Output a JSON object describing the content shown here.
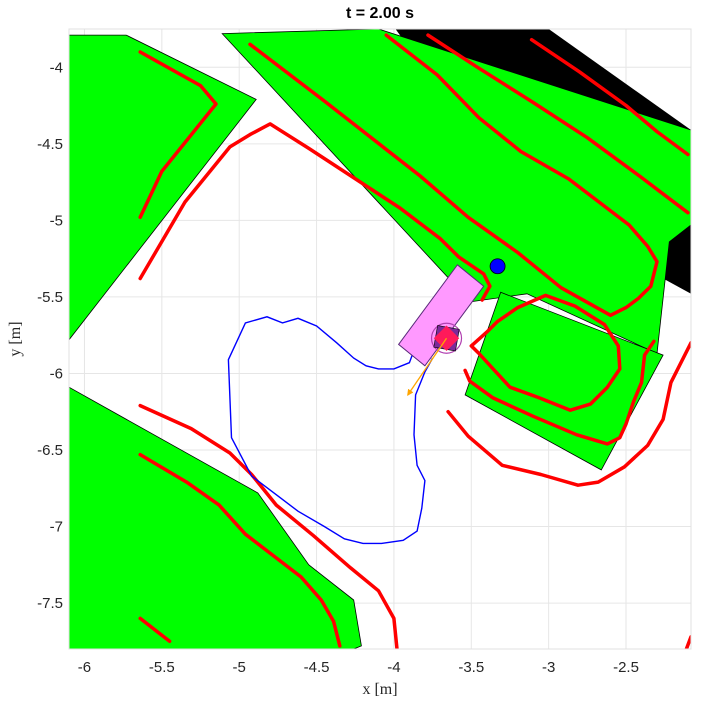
{
  "chart_data": {
    "type": "scatter",
    "title": "t = 2.00 s",
    "xlabel": "x [m]",
    "ylabel": "y [m]",
    "xlim": [
      -6.1,
      -2.08
    ],
    "ylim": [
      -7.8,
      -3.75
    ],
    "x_ticks": [
      -6,
      -5.5,
      -5,
      -4.5,
      -4,
      -3.5,
      -3,
      -2.5
    ],
    "x_tick_labels": [
      "-6",
      "-5.5",
      "-5",
      "-4.5",
      "-4",
      "-3.5",
      "-3",
      "-2.5"
    ],
    "y_ticks": [
      -4,
      -4.5,
      -5,
      -5.5,
      -6,
      -6.5,
      -7,
      -7.5
    ],
    "y_tick_labels": [
      "-4",
      "-4.5",
      "-5",
      "-5.5",
      "-6",
      "-6.5",
      "-7",
      "-7.5"
    ],
    "grid": true,
    "colors": {
      "obstacle": "#00ff00",
      "occupied": "#000000",
      "boundary": "#ff0000",
      "path": "#0000ff",
      "vehicle": "#ff99ff",
      "marker": "#0000ff",
      "velocity": "#ffa500"
    },
    "black_regions": [
      [
        [
          -3.99,
          -3.75
        ],
        [
          -3.0,
          -3.75
        ],
        [
          -2.08,
          -4.41
        ],
        [
          -2.08,
          -5.48
        ],
        [
          -3.2,
          -4.86
        ]
      ],
      [
        [
          -6.1,
          -7.0
        ],
        [
          -4.55,
          -7.25
        ],
        [
          -4.4,
          -7.8
        ],
        [
          -6.1,
          -7.8
        ]
      ]
    ],
    "green_regions": [
      [
        [
          -6.1,
          -3.79
        ],
        [
          -5.73,
          -3.79
        ],
        [
          -4.89,
          -4.21
        ],
        [
          -6.1,
          -5.78
        ]
      ],
      [
        [
          -5.11,
          -3.78
        ],
        [
          -4.1,
          -3.75
        ],
        [
          -2.08,
          -4.41
        ],
        [
          -2.08,
          -5.03
        ],
        [
          -2.22,
          -5.14
        ],
        [
          -2.3,
          -5.87
        ],
        [
          -3.14,
          -5.48
        ],
        [
          -3.49,
          -5.53
        ],
        [
          -3.59,
          -5.44
        ]
      ],
      [
        [
          -3.31,
          -5.47
        ],
        [
          -2.26,
          -5.88
        ],
        [
          -2.66,
          -6.63
        ],
        [
          -3.54,
          -6.14
        ]
      ],
      [
        [
          -6.1,
          -6.09
        ],
        [
          -4.88,
          -6.78
        ],
        [
          -4.55,
          -7.25
        ],
        [
          -4.26,
          -7.48
        ],
        [
          -4.21,
          -7.78
        ],
        [
          -4.26,
          -7.8
        ],
        [
          -6.1,
          -7.8
        ]
      ]
    ],
    "red_boundaries": [
      [
        [
          -5.64,
          -3.9
        ],
        [
          -5.25,
          -4.12
        ],
        [
          -5.15,
          -4.24
        ],
        [
          -5.5,
          -4.68
        ],
        [
          -5.64,
          -4.98
        ]
      ],
      [
        [
          -5.64,
          -5.38
        ],
        [
          -5.35,
          -4.88
        ],
        [
          -5.06,
          -4.52
        ],
        [
          -4.93,
          -4.44
        ],
        [
          -4.8,
          -4.37
        ],
        [
          -4.55,
          -4.53
        ],
        [
          -3.96,
          -4.92
        ],
        [
          -3.7,
          -5.12
        ],
        [
          -3.58,
          -5.24
        ],
        [
          -3.42,
          -5.35
        ],
        [
          -3.38,
          -5.43
        ],
        [
          -3.43,
          -5.52
        ]
      ],
      [
        [
          -4.93,
          -3.85
        ],
        [
          -4.45,
          -4.22
        ],
        [
          -3.83,
          -4.71
        ],
        [
          -3.52,
          -4.98
        ],
        [
          -3.2,
          -5.21
        ],
        [
          -2.92,
          -5.44
        ],
        [
          -2.6,
          -5.62
        ],
        [
          -2.5,
          -5.57
        ],
        [
          -2.42,
          -5.51
        ],
        [
          -2.34,
          -5.43
        ],
        [
          -2.3,
          -5.27
        ],
        [
          -2.36,
          -5.17
        ],
        [
          -2.48,
          -5.03
        ],
        [
          -2.87,
          -4.73
        ],
        [
          -3.18,
          -4.55
        ],
        [
          -3.45,
          -4.33
        ],
        [
          -3.72,
          -4.05
        ],
        [
          -4.05,
          -3.79
        ]
      ],
      [
        [
          -3.78,
          -3.79
        ],
        [
          -3.46,
          -4.0
        ],
        [
          -3.1,
          -4.23
        ],
        [
          -2.75,
          -4.46
        ],
        [
          -2.4,
          -4.72
        ],
        [
          -2.27,
          -4.82
        ],
        [
          -2.1,
          -4.95
        ]
      ],
      [
        [
          -3.11,
          -3.82
        ],
        [
          -2.8,
          -4.03
        ],
        [
          -2.5,
          -4.25
        ],
        [
          -2.3,
          -4.42
        ],
        [
          -2.1,
          -4.57
        ]
      ],
      [
        [
          -3.54,
          -5.98
        ],
        [
          -3.51,
          -6.05
        ],
        [
          -3.36,
          -6.16
        ],
        [
          -3.1,
          -6.28
        ],
        [
          -2.82,
          -6.4
        ],
        [
          -2.62,
          -6.46
        ],
        [
          -2.54,
          -6.42
        ],
        [
          -2.5,
          -6.33
        ],
        [
          -2.45,
          -6.18
        ],
        [
          -2.4,
          -6.06
        ],
        [
          -2.38,
          -5.88
        ],
        [
          -2.32,
          -5.79
        ]
      ],
      [
        [
          -2.08,
          -5.8
        ],
        [
          -2.21,
          -6.06
        ],
        [
          -2.26,
          -6.3
        ],
        [
          -2.36,
          -6.47
        ],
        [
          -2.51,
          -6.61
        ],
        [
          -2.68,
          -6.71
        ],
        [
          -2.81,
          -6.73
        ],
        [
          -3.05,
          -6.66
        ],
        [
          -3.3,
          -6.6
        ],
        [
          -3.52,
          -6.41
        ],
        [
          -3.65,
          -6.25
        ]
      ],
      [
        [
          -5.64,
          -6.21
        ],
        [
          -5.31,
          -6.36
        ],
        [
          -5.06,
          -6.52
        ],
        [
          -4.92,
          -6.66
        ],
        [
          -4.76,
          -6.86
        ],
        [
          -4.52,
          -7.06
        ],
        [
          -4.28,
          -7.27
        ],
        [
          -4.1,
          -7.42
        ],
        [
          -4.0,
          -7.6
        ],
        [
          -3.98,
          -7.8
        ]
      ],
      [
        [
          -5.64,
          -6.53
        ],
        [
          -5.34,
          -6.71
        ],
        [
          -5.13,
          -6.86
        ],
        [
          -4.96,
          -7.05
        ],
        [
          -4.6,
          -7.33
        ],
        [
          -4.47,
          -7.48
        ],
        [
          -4.39,
          -7.62
        ],
        [
          -4.35,
          -7.78
        ]
      ],
      [
        [
          -5.64,
          -7.6
        ],
        [
          -5.45,
          -7.75
        ]
      ],
      [
        [
          -2.08,
          -7.72
        ],
        [
          -2.11,
          -7.8
        ]
      ],
      [
        [
          -3.5,
          -5.82
        ],
        [
          -3.4,
          -5.73
        ],
        [
          -3.33,
          -5.66
        ],
        [
          -3.2,
          -5.57
        ],
        [
          -3.02,
          -5.49
        ],
        [
          -2.83,
          -5.56
        ],
        [
          -2.64,
          -5.68
        ],
        [
          -2.55,
          -5.82
        ],
        [
          -2.54,
          -5.97
        ],
        [
          -2.62,
          -6.09
        ],
        [
          -2.73,
          -6.2
        ],
        [
          -2.86,
          -6.24
        ],
        [
          -3.06,
          -6.16
        ],
        [
          -3.25,
          -6.09
        ],
        [
          -3.35,
          -5.98
        ],
        [
          -3.45,
          -5.87
        ],
        [
          -3.5,
          -5.82
        ]
      ]
    ],
    "path": [
      [
        -3.83,
        -5.74
      ],
      [
        -3.9,
        -5.93
      ],
      [
        -4.0,
        -5.97
      ],
      [
        -4.1,
        -5.97
      ],
      [
        -4.18,
        -5.95
      ],
      [
        -4.26,
        -5.9
      ],
      [
        -4.37,
        -5.8
      ],
      [
        -4.5,
        -5.69
      ],
      [
        -4.62,
        -5.64
      ],
      [
        -4.72,
        -5.67
      ],
      [
        -4.82,
        -5.63
      ],
      [
        -4.96,
        -5.67
      ],
      [
        -5.07,
        -5.91
      ],
      [
        -5.05,
        -6.42
      ],
      [
        -4.92,
        -6.67
      ],
      [
        -4.75,
        -6.8
      ],
      [
        -4.62,
        -6.9
      ],
      [
        -4.45,
        -7.0
      ],
      [
        -4.32,
        -7.08
      ],
      [
        -4.2,
        -7.11
      ],
      [
        -4.08,
        -7.11
      ],
      [
        -3.94,
        -7.09
      ],
      [
        -3.85,
        -7.03
      ],
      [
        -3.82,
        -6.88
      ],
      [
        -3.8,
        -6.7
      ],
      [
        -3.85,
        -6.6
      ],
      [
        -3.87,
        -6.4
      ],
      [
        -3.86,
        -6.14
      ],
      [
        -3.8,
        -5.99
      ],
      [
        -3.75,
        -5.9
      ]
    ],
    "vehicle": [
      [
        -3.59,
        -5.29
      ],
      [
        -3.42,
        -5.43
      ],
      [
        -3.8,
        -5.95
      ],
      [
        -3.97,
        -5.81
      ]
    ],
    "vehicle_center": [
      -3.66,
      -5.77
    ],
    "goal_marker": [
      -3.33,
      -5.3
    ],
    "velocity": {
      "from": [
        -3.66,
        -5.77
      ],
      "to": [
        -3.91,
        -6.14
      ]
    }
  }
}
